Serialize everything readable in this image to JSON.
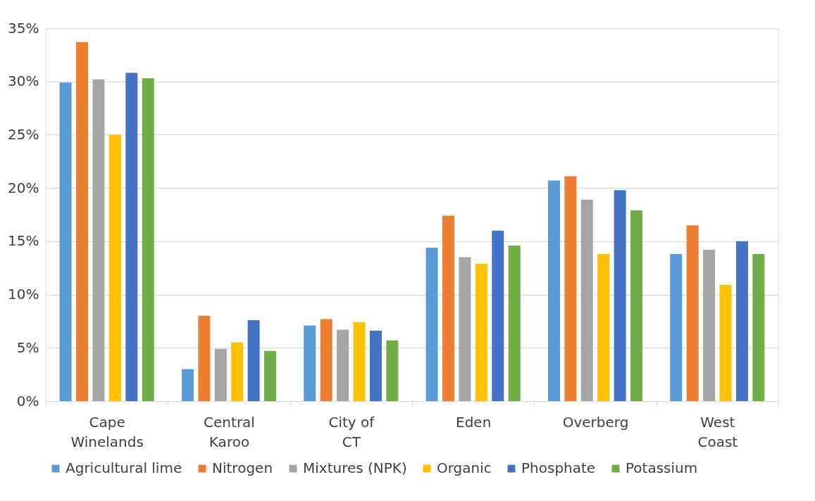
{
  "chart_data": {
    "type": "bar",
    "categories": [
      "Cape Winelands",
      "Central Karoo",
      "City of CT",
      "Eden",
      "Overberg",
      "West Coast"
    ],
    "series": [
      {
        "name": "Agricultural lime",
        "color": "#5b9bd5",
        "values": [
          29.9,
          3.0,
          7.1,
          14.4,
          20.7,
          13.8
        ]
      },
      {
        "name": "Nitrogen",
        "color": "#ed7d31",
        "values": [
          33.7,
          8.0,
          7.7,
          17.4,
          21.1,
          16.5
        ]
      },
      {
        "name": "Mixtures (NPK)",
        "color": "#a5a5a5",
        "values": [
          30.2,
          4.9,
          6.7,
          13.5,
          18.9,
          14.2
        ]
      },
      {
        "name": "Organic",
        "color": "#ffc000",
        "values": [
          25.0,
          5.5,
          7.4,
          12.9,
          13.8,
          10.9
        ]
      },
      {
        "name": "Phosphate",
        "color": "#4472c4",
        "values": [
          30.8,
          7.6,
          6.6,
          16.0,
          19.8,
          15.0
        ]
      },
      {
        "name": "Potassium",
        "color": "#70ad47",
        "values": [
          30.3,
          4.7,
          5.7,
          14.6,
          17.9,
          13.8
        ]
      }
    ],
    "ylim": [
      0,
      35
    ],
    "yticks": [
      {
        "value": 0,
        "label": "0%"
      },
      {
        "value": 5,
        "label": "5%"
      },
      {
        "value": 10,
        "label": "10%"
      },
      {
        "value": 15,
        "label": "15%"
      },
      {
        "value": 20,
        "label": "20%"
      },
      {
        "value": 25,
        "label": "25%"
      },
      {
        "value": 30,
        "label": "30%"
      },
      {
        "value": 35,
        "label": "35%"
      }
    ],
    "grid": "y",
    "legend": "bottom"
  }
}
